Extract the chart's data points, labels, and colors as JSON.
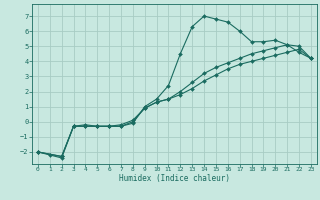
{
  "title": "",
  "xlabel": "Humidex (Indice chaleur)",
  "xlim": [
    -0.5,
    23.5
  ],
  "ylim": [
    -2.8,
    7.8
  ],
  "xticks": [
    0,
    1,
    2,
    3,
    4,
    5,
    6,
    7,
    8,
    9,
    10,
    11,
    12,
    13,
    14,
    15,
    16,
    17,
    18,
    19,
    20,
    21,
    22,
    23
  ],
  "yticks": [
    -2,
    -1,
    0,
    1,
    2,
    3,
    4,
    5,
    6,
    7
  ],
  "background_color": "#c8e8e0",
  "grid_color": "#a8ccc4",
  "line_color": "#1a6b60",
  "curve1_x": [
    0,
    1,
    2,
    3,
    4,
    5,
    6,
    7,
    8,
    9,
    10,
    11,
    12,
    13,
    14,
    15,
    16,
    17,
    18,
    19,
    20,
    21,
    22,
    23
  ],
  "curve1_y": [
    -2.0,
    -2.2,
    -2.4,
    -0.3,
    -0.3,
    -0.3,
    -0.3,
    -0.3,
    -0.1,
    1.0,
    1.5,
    2.4,
    4.5,
    6.3,
    7.0,
    6.8,
    6.6,
    6.0,
    5.3,
    5.3,
    5.4,
    5.1,
    4.6,
    4.2
  ],
  "curve2_x": [
    0,
    2,
    3,
    4,
    5,
    6,
    7,
    8,
    9,
    10,
    11,
    12,
    13,
    14,
    15,
    16,
    17,
    18,
    19,
    20,
    21,
    22,
    23
  ],
  "curve2_y": [
    -2.0,
    -2.3,
    -0.3,
    -0.3,
    -0.3,
    -0.3,
    -0.3,
    0.0,
    0.9,
    1.3,
    1.5,
    1.8,
    2.2,
    2.7,
    3.1,
    3.5,
    3.8,
    4.0,
    4.2,
    4.4,
    4.6,
    4.8,
    4.2
  ],
  "curve3_x": [
    0,
    2,
    3,
    4,
    5,
    6,
    7,
    8,
    9,
    10,
    11,
    12,
    13,
    14,
    15,
    16,
    17,
    18,
    19,
    20,
    21,
    22,
    23
  ],
  "curve3_y": [
    -2.0,
    -2.3,
    -0.3,
    -0.2,
    -0.3,
    -0.3,
    -0.2,
    0.1,
    0.9,
    1.3,
    1.5,
    2.0,
    2.6,
    3.2,
    3.6,
    3.9,
    4.2,
    4.5,
    4.7,
    4.9,
    5.1,
    5.0,
    4.2
  ]
}
